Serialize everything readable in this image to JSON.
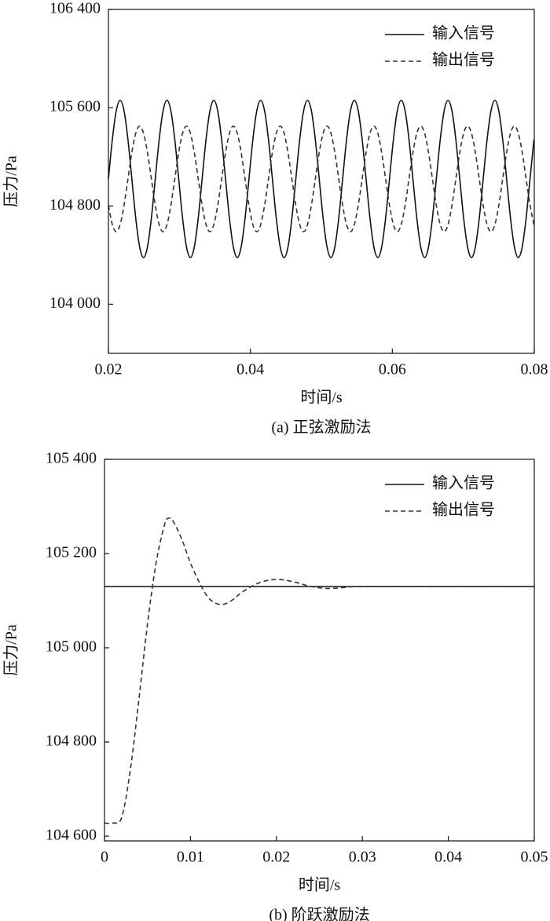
{
  "chart_data": [
    {
      "type": "line",
      "caption": "(a) 正弦激励法",
      "x_label": "时间/s",
      "y_label": "压力/Pa",
      "x": [
        0.02,
        0.02055,
        0.0211,
        0.02165,
        0.0222,
        0.02275,
        0.0233,
        0.02385,
        0.0244,
        0.02495,
        0.0255,
        0.02605,
        0.0266,
        0.02715,
        0.0277,
        0.02825,
        0.0288,
        0.02935,
        0.0299,
        0.03045,
        0.031,
        0.03155,
        0.0321,
        0.03265,
        0.0332,
        0.03375,
        0.0343,
        0.03485,
        0.0354,
        0.03595,
        0.0365,
        0.03705,
        0.0376,
        0.03815,
        0.0387,
        0.03925,
        0.0398,
        0.04035,
        0.0409,
        0.04145,
        0.042,
        0.04255,
        0.0431,
        0.04365,
        0.0442,
        0.04475,
        0.0453,
        0.04585,
        0.0464,
        0.04695,
        0.0475,
        0.04805,
        0.0486,
        0.04915,
        0.0497,
        0.05025,
        0.0508,
        0.05135,
        0.0519,
        0.05245,
        0.053,
        0.05355,
        0.0541,
        0.05465,
        0.0552,
        0.05575,
        0.0563,
        0.05685,
        0.0574,
        0.05795,
        0.0585,
        0.05905,
        0.0596,
        0.06015,
        0.0607,
        0.06125,
        0.0618,
        0.06235,
        0.0629,
        0.06345,
        0.064,
        0.06455,
        0.0651,
        0.06565,
        0.0662,
        0.06675,
        0.0673,
        0.06785,
        0.0684,
        0.06895,
        0.0695,
        0.07005,
        0.0706,
        0.07115,
        0.0717,
        0.07225,
        0.0728,
        0.07335,
        0.0739,
        0.07445,
        0.075,
        0.07555,
        0.0761,
        0.07665,
        0.0772,
        0.07775,
        0.0783,
        0.07885,
        0.0794,
        0.07995
      ],
      "series": [
        {
          "name": "输入信号",
          "color": "#111111",
          "linestyle": "solid",
          "values": [
            105020,
            105340,
            105574,
            105660,
            105574,
            105340,
            105020,
            104700,
            104466,
            104380,
            104466,
            104700,
            105020,
            105340,
            105574,
            105660,
            105574,
            105340,
            105020,
            104700,
            104466,
            104380,
            104466,
            104700,
            105020,
            105340,
            105574,
            105660,
            105574,
            105340,
            105020,
            104700,
            104466,
            104380,
            104466,
            104700,
            105020,
            105340,
            105574,
            105660,
            105574,
            105340,
            105020,
            104700,
            104466,
            104380,
            104466,
            104700,
            105020,
            105340,
            105574,
            105660,
            105574,
            105340,
            105020,
            104700,
            104466,
            104380,
            104466,
            104700,
            105020,
            105340,
            105574,
            105660,
            105574,
            105340,
            105020,
            104700,
            104466,
            104380,
            104466,
            104700,
            105020,
            105340,
            105574,
            105660,
            105574,
            105340,
            105020,
            104700,
            104466,
            104380,
            104466,
            104700,
            105020,
            105340,
            105574,
            105660,
            105574,
            105340,
            105020,
            104700,
            104466,
            104380,
            104466,
            104700,
            105020,
            105340,
            105574,
            105660,
            105574,
            105340,
            105020,
            104700,
            104466,
            104380,
            104466,
            104700,
            105020,
            105340
          ]
        },
        {
          "name": "输出信号",
          "color": "#333333",
          "linestyle": "dashed",
          "values": [
            104805,
            104648,
            104590,
            104648,
            104805,
            105020,
            105235,
            105392,
            105450,
            105392,
            105235,
            105020,
            104805,
            104648,
            104590,
            104648,
            104805,
            105020,
            105235,
            105392,
            105450,
            105392,
            105235,
            105020,
            104805,
            104648,
            104590,
            104648,
            104805,
            105020,
            105235,
            105392,
            105450,
            105392,
            105235,
            105020,
            104805,
            104648,
            104590,
            104648,
            104805,
            105020,
            105235,
            105392,
            105450,
            105392,
            105235,
            105020,
            104805,
            104648,
            104590,
            104648,
            104805,
            105020,
            105235,
            105392,
            105450,
            105392,
            105235,
            105020,
            104805,
            104648,
            104590,
            104648,
            104805,
            105020,
            105235,
            105392,
            105450,
            105392,
            105235,
            105020,
            104805,
            104648,
            104590,
            104648,
            104805,
            105020,
            105235,
            105392,
            105450,
            105392,
            105235,
            105020,
            104805,
            104648,
            104590,
            104648,
            104805,
            105020,
            105235,
            105392,
            105450,
            105392,
            105235,
            105020,
            104805,
            104648,
            104590,
            104648,
            104805,
            105020,
            105235,
            105392,
            105450,
            105392,
            105235,
            105020,
            104805,
            104648
          ]
        }
      ],
      "xlim": [
        0.02,
        0.08
      ],
      "xticks": [
        0.02,
        0.04,
        0.06,
        0.08
      ],
      "ylim": [
        103600,
        106400
      ],
      "yticks": [
        {
          "value": 104000,
          "label": "104 000"
        },
        {
          "value": 104800,
          "label": "104 800"
        },
        {
          "value": 105600,
          "label": "105 600"
        },
        {
          "value": 106400,
          "label": "106 400"
        }
      ],
      "legend": "upper right"
    },
    {
      "type": "line",
      "caption": "(b) 阶跃激励法",
      "x_label": "时间/s",
      "y_label": "压力/Pa",
      "x": [
        0,
        0.001,
        0.002,
        0.003,
        0.004,
        0.005,
        0.006,
        0.007,
        0.0075,
        0.008,
        0.009,
        0.01,
        0.011,
        0.012,
        0.013,
        0.014,
        0.015,
        0.016,
        0.018,
        0.02,
        0.022,
        0.024,
        0.026,
        0.028,
        0.03,
        0.04,
        0.05
      ],
      "series": [
        {
          "name": "输入信号",
          "color": "#111111",
          "linestyle": "solid",
          "values": [
            105130,
            105130,
            105130,
            105130,
            105130,
            105130,
            105130,
            105130,
            105130,
            105130,
            105130,
            105130,
            105130,
            105130,
            105130,
            105130,
            105130,
            105130,
            105130,
            105130,
            105130,
            105130,
            105130,
            105130,
            105130,
            105130,
            105130
          ]
        },
        {
          "name": "输出信号",
          "color": "#333333",
          "linestyle": "dashed",
          "values": [
            104628,
            104628,
            104640,
            104740,
            104890,
            105050,
            105180,
            105262,
            105275,
            105268,
            105230,
            105180,
            105140,
            105108,
            105094,
            105093,
            105103,
            105118,
            105138,
            105145,
            105140,
            105130,
            105126,
            105128,
            105130,
            105130,
            105130
          ]
        }
      ],
      "xlim": [
        0,
        0.05
      ],
      "xticks": [
        0,
        0.01,
        0.02,
        0.03,
        0.04,
        0.05
      ],
      "ylim": [
        104590,
        105400
      ],
      "yticks": [
        {
          "value": 104600,
          "label": "104 600"
        },
        {
          "value": 104800,
          "label": "104 800"
        },
        {
          "value": 105000,
          "label": "105 000"
        },
        {
          "value": 105200,
          "label": "105 200"
        },
        {
          "value": 105400,
          "label": "105 400"
        }
      ],
      "legend": "upper right"
    }
  ]
}
